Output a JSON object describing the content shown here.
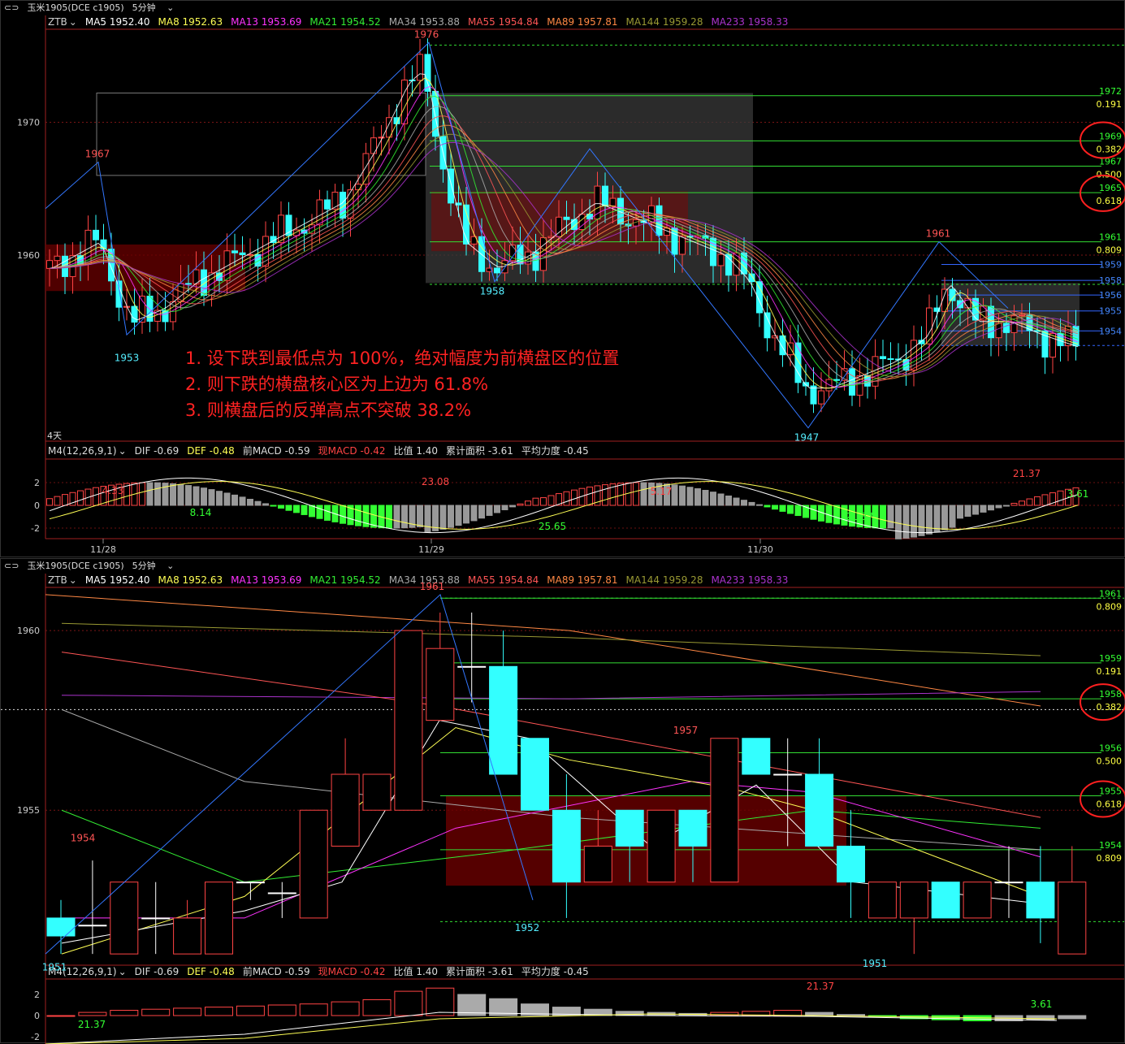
{
  "instrument": "玉米1905(DCE c1905)",
  "period": "5分钟",
  "ma_legend": [
    {
      "label": "ZTB",
      "color": "#d0d0d0"
    },
    {
      "label": "MA5 1952.40",
      "color": "#ffffff"
    },
    {
      "label": "MA8 1952.63",
      "color": "#ffff55"
    },
    {
      "label": "MA13 1953.69",
      "color": "#ff33ff"
    },
    {
      "label": "MA21 1954.52",
      "color": "#33ee33"
    },
    {
      "label": "MA34 1953.88",
      "color": "#aaaaaa"
    },
    {
      "label": "MA55 1954.84",
      "color": "#ff5555"
    },
    {
      "label": "MA89 1957.81",
      "color": "#ff8844"
    },
    {
      "label": "MA144 1959.28",
      "color": "#999933"
    },
    {
      "label": "MA233 1958.33",
      "color": "#aa33cc"
    }
  ],
  "macd_legend": [
    {
      "label": "M4(12,26,9,1)",
      "color": "#dddddd"
    },
    {
      "label": "DIF -0.69",
      "color": "#dddddd"
    },
    {
      "label": "DEF -0.48",
      "color": "#ffff55"
    },
    {
      "label": "前MACD -0.59",
      "color": "#dddddd"
    },
    {
      "label": "现MACD -0.42",
      "color": "#ff4444"
    },
    {
      "label": "比值 1.40",
      "color": "#dddddd"
    },
    {
      "label": "累计面积 -3.61",
      "color": "#dddddd"
    },
    {
      "label": "平均力度 -0.45",
      "color": "#dddddd"
    }
  ],
  "top": {
    "y_ticks": [
      "1970",
      "1960"
    ],
    "period_badge": "4天",
    "x_dates": [
      "11/28",
      "11/29",
      "11/30"
    ],
    "macd_ticks": [
      "2",
      "0",
      "-2"
    ],
    "peak_labels": [
      "1976",
      "1967",
      "1961"
    ],
    "trough_labels": [
      "1953",
      "1958",
      "1947"
    ],
    "fib_levels": [
      {
        "price": "1972",
        "ratio": "0.191"
      },
      {
        "price": "1969",
        "ratio": "0.382"
      },
      {
        "price": "1967",
        "ratio": "0.500"
      },
      {
        "price": "1965",
        "ratio": "0.618"
      },
      {
        "price": "1961",
        "ratio": "0.809"
      }
    ],
    "blue_levels": [
      "1959",
      "1958",
      "1956",
      "1955",
      "1954"
    ],
    "macd_labels": [
      "4.33",
      "23.08",
      "5.17",
      "21.37"
    ],
    "macd_labels_green": [
      "8.14",
      "25.65",
      "21.37",
      "3.61"
    ],
    "chart_data": {
      "type": "candlestick",
      "y_range": [
        1946,
        1977
      ],
      "swing_points": [
        1956,
        1967,
        1953,
        1976,
        1958,
        1968,
        1947,
        1961,
        1955
      ]
    }
  },
  "annotations": [
    "1. 设下跌到最低点为 100%，绝对幅度为前横盘区的位置",
    "2. 则下跌的横盘核心区为上边为 61.8%",
    "3. 则横盘后的反弹高点不突破 38.2%"
  ],
  "bottom": {
    "y_ticks": [
      "1960",
      "1955"
    ],
    "macd_ticks": [
      "2",
      "0",
      "-2"
    ],
    "peak_labels": [
      "1961",
      "1954",
      "1957"
    ],
    "trough_labels": [
      "1951",
      "1952",
      "1951"
    ],
    "fib_levels": [
      {
        "price": "1961",
        "ratio": "0.809"
      },
      {
        "price": "1959",
        "ratio": "0.191"
      },
      {
        "price": "1958",
        "ratio": "0.382"
      },
      {
        "price": "1956",
        "ratio": "0.500"
      },
      {
        "price": "1955",
        "ratio": "0.618"
      },
      {
        "price": "1954",
        "ratio": "0.809"
      }
    ],
    "macd_labels": [
      "21.37",
      "21.37",
      "3.61"
    ],
    "chart_data": {
      "type": "candlestick",
      "y_range": [
        1950.8,
        1961.2
      ],
      "candles": [
        {
          "o": 1952,
          "c": 1951.5,
          "h": 1952.5,
          "l": 1951
        },
        {
          "o": 1951.8,
          "c": 1951.8,
          "h": 1953.6,
          "l": 1951
        },
        {
          "o": 1951,
          "c": 1953,
          "h": 1953,
          "l": 1951
        },
        {
          "o": 1952,
          "c": 1952,
          "h": 1953,
          "l": 1951
        },
        {
          "o": 1951,
          "c": 1952,
          "h": 1952.5,
          "l": 1951
        },
        {
          "o": 1951,
          "c": 1953,
          "h": 1953,
          "l": 1951
        },
        {
          "o": 1953,
          "c": 1953,
          "h": 1953,
          "l": 1952.5
        },
        {
          "o": 1952.7,
          "c": 1952.7,
          "h": 1953,
          "l": 1952
        },
        {
          "o": 1952,
          "c": 1955,
          "h": 1955,
          "l": 1952
        },
        {
          "o": 1954,
          "c": 1956,
          "h": 1957,
          "l": 1954
        },
        {
          "o": 1955,
          "c": 1956,
          "h": 1956,
          "l": 1955
        },
        {
          "o": 1955,
          "c": 1960,
          "h": 1960,
          "l": 1955
        },
        {
          "o": 1957.5,
          "c": 1959.5,
          "h": 1960.5,
          "l": 1957.5
        },
        {
          "o": 1959,
          "c": 1959,
          "h": 1960.5,
          "l": 1958
        },
        {
          "o": 1959,
          "c": 1956,
          "h": 1960,
          "l": 1956
        },
        {
          "o": 1957,
          "c": 1955,
          "h": 1957,
          "l": 1955
        },
        {
          "o": 1955,
          "c": 1953,
          "h": 1956,
          "l": 1952
        },
        {
          "o": 1953,
          "c": 1954,
          "h": 1955,
          "l": 1953
        },
        {
          "o": 1955,
          "c": 1954,
          "h": 1955,
          "l": 1953
        },
        {
          "o": 1953,
          "c": 1955,
          "h": 1955,
          "l": 1953
        },
        {
          "o": 1955,
          "c": 1954,
          "h": 1955,
          "l": 1953
        },
        {
          "o": 1953,
          "c": 1957,
          "h": 1957,
          "l": 1953
        },
        {
          "o": 1957,
          "c": 1956,
          "h": 1957,
          "l": 1956
        },
        {
          "o": 1956,
          "c": 1956,
          "h": 1957,
          "l": 1954
        },
        {
          "o": 1956,
          "c": 1954,
          "h": 1957,
          "l": 1954
        },
        {
          "o": 1954,
          "c": 1953,
          "h": 1955,
          "l": 1952
        },
        {
          "o": 1952,
          "c": 1953,
          "h": 1953,
          "l": 1952
        },
        {
          "o": 1952,
          "c": 1953,
          "h": 1953,
          "l": 1951
        },
        {
          "o": 1953,
          "c": 1952,
          "h": 1953,
          "l": 1952
        },
        {
          "o": 1952,
          "c": 1953,
          "h": 1953,
          "l": 1952
        },
        {
          "o": 1953,
          "c": 1953,
          "h": 1954,
          "l": 1952
        },
        {
          "o": 1953,
          "c": 1952,
          "h": 1954,
          "l": 1951.3
        },
        {
          "o": 1951,
          "c": 1953,
          "h": 1954,
          "l": 1951
        }
      ],
      "swing_points": [
        1951,
        1961,
        1952,
        1957,
        1951
      ]
    }
  }
}
